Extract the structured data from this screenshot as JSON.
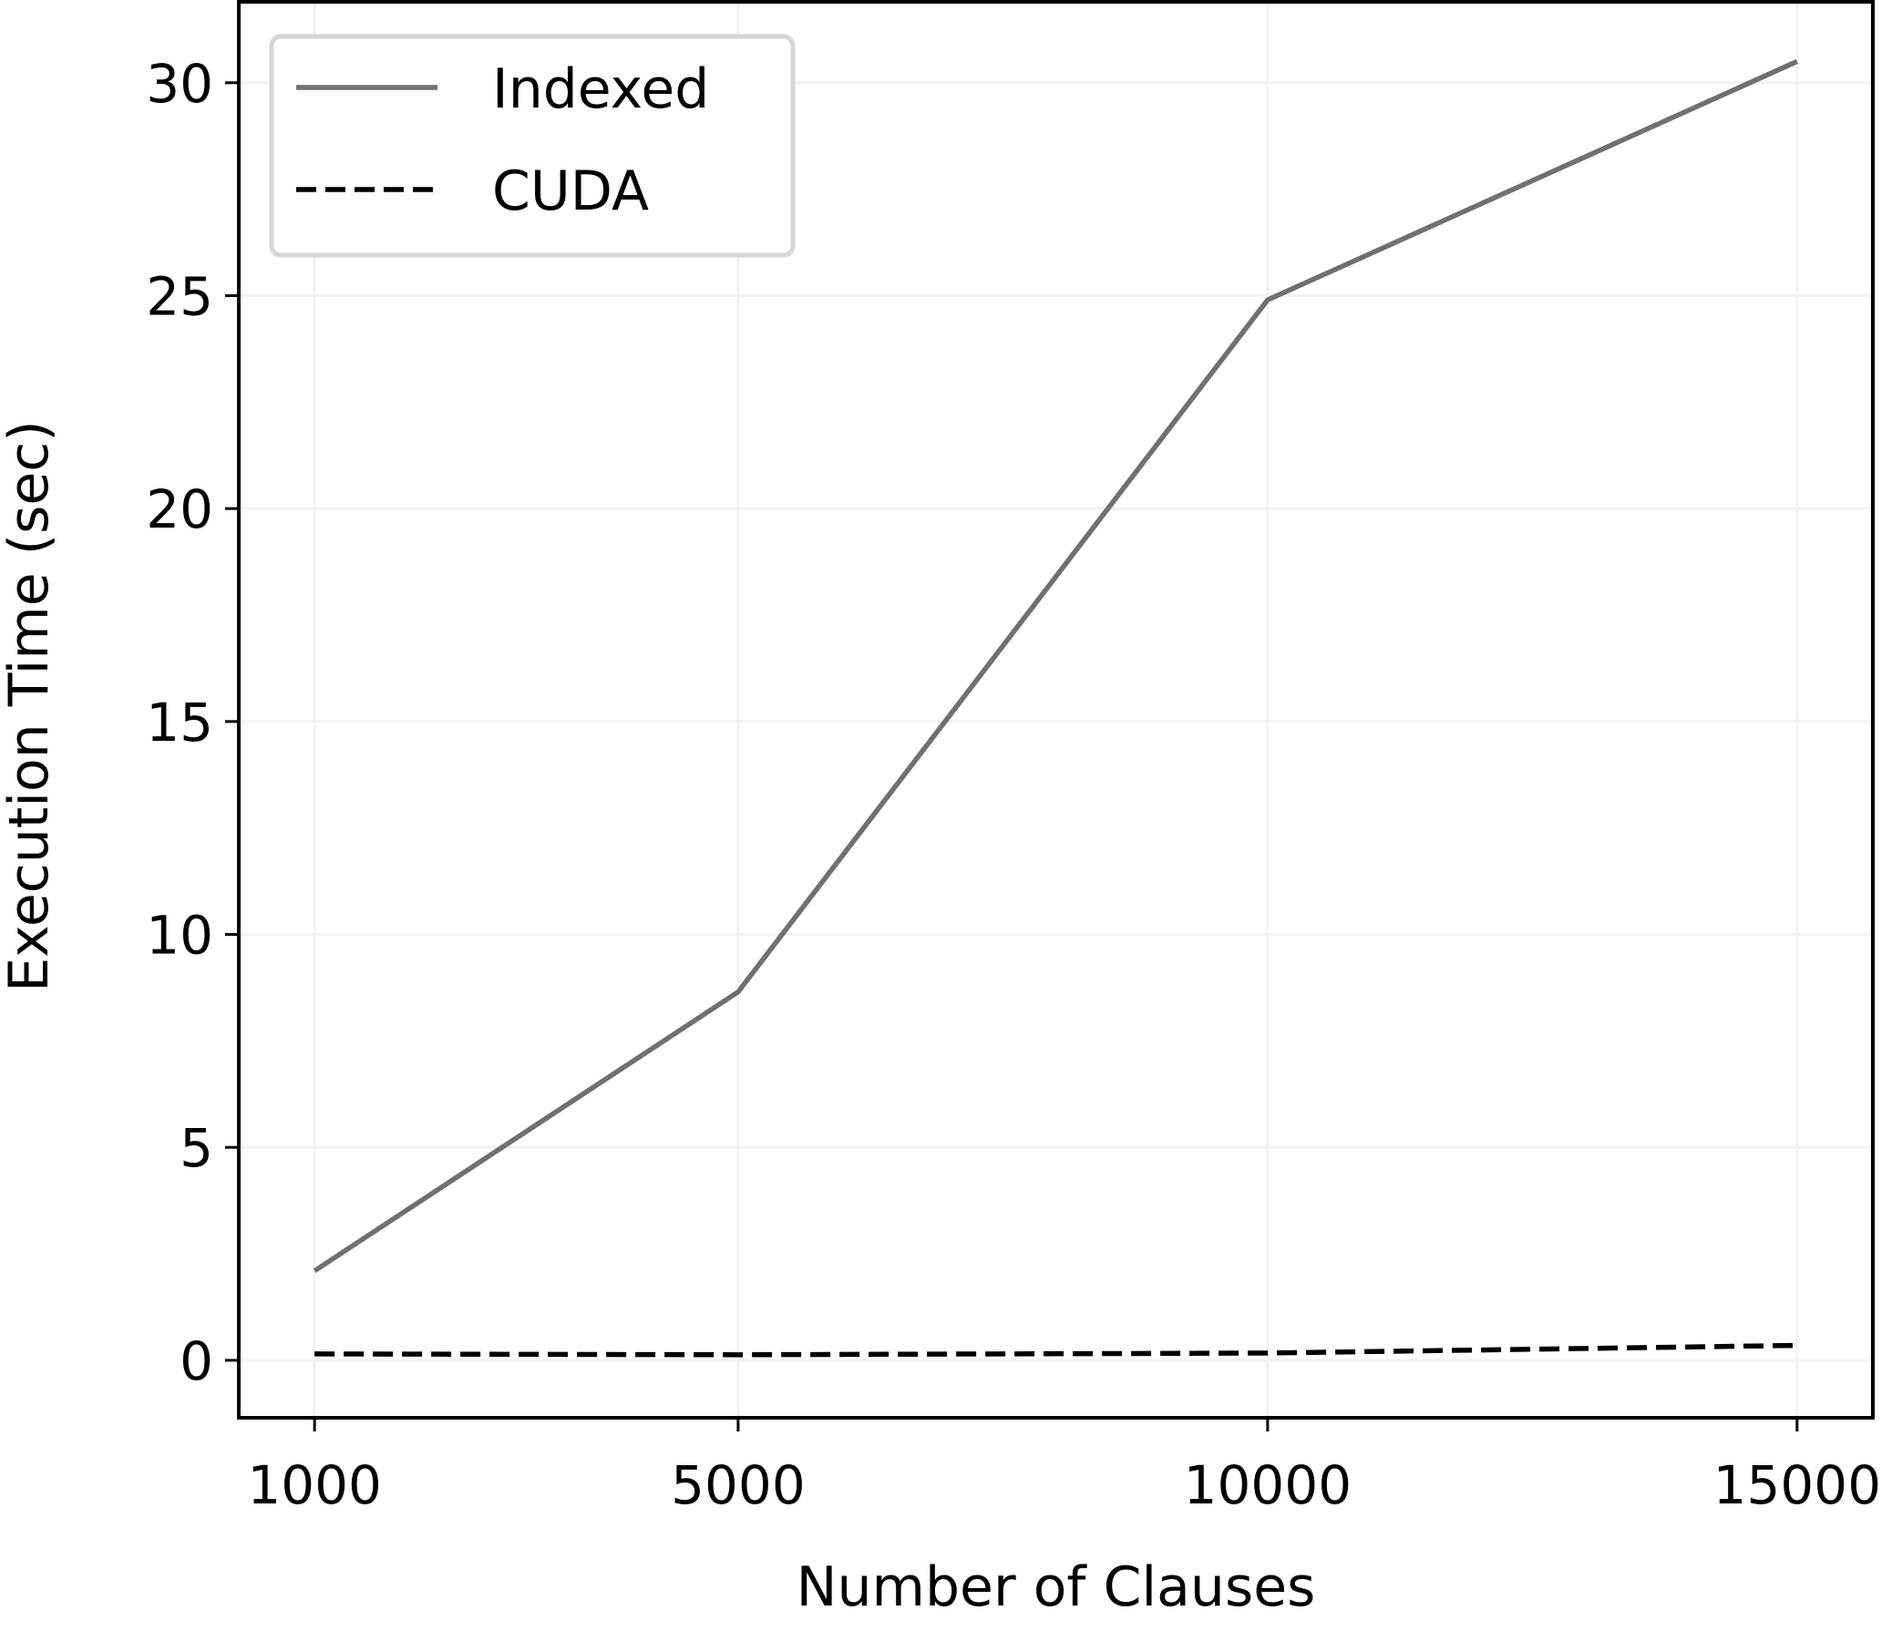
{
  "chart_data": {
    "type": "line",
    "title": "",
    "xlabel": "Number of Clauses",
    "ylabel": "Execution Time (sec)",
    "x": [
      1000,
      5000,
      10000,
      15000
    ],
    "x_tick_labels": [
      "1000",
      "5000",
      "10000",
      "15000"
    ],
    "y_ticks": [
      0,
      5,
      10,
      15,
      20,
      25,
      30
    ],
    "y_tick_labels": [
      "0",
      "5",
      "10",
      "15",
      "20",
      "25",
      "30"
    ],
    "xlim": [
      284.5,
      15715.5
    ],
    "ylim": [
      -1.35,
      31.9
    ],
    "grid": true,
    "legend_position": "upper-left",
    "series": [
      {
        "name": "Indexed",
        "values": [
          2.1,
          8.65,
          24.9,
          30.5
        ],
        "color": "#707070",
        "style": "solid"
      },
      {
        "name": "CUDA",
        "values": [
          0.15,
          0.13,
          0.17,
          0.35
        ],
        "color": "#000000",
        "style": "dashed"
      }
    ]
  }
}
